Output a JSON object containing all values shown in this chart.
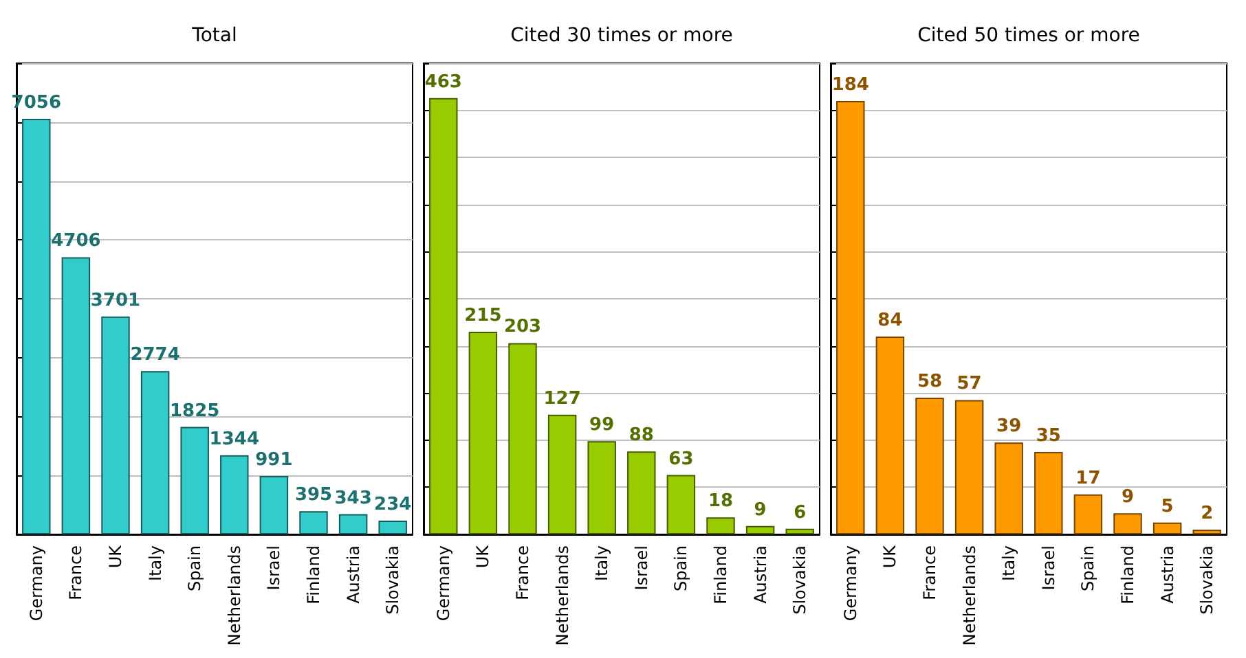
{
  "chart_data": [
    {
      "type": "bar",
      "title": "Total",
      "categories": [
        "Germany",
        "France",
        "UK",
        "Italy",
        "Spain",
        "Netherlands",
        "Israel",
        "Finland",
        "Austria",
        "Slovakia"
      ],
      "values": [
        7056,
        4706,
        3701,
        2774,
        1825,
        1344,
        991,
        395,
        343,
        234
      ],
      "color": "#33cccc",
      "data_labels": true,
      "ylim": [
        0,
        8000
      ],
      "yticks": [
        {
          "value": 0,
          "label": null
        },
        {
          "value": 1000,
          "label": null
        },
        {
          "value": 2000,
          "label": null
        },
        {
          "value": 3000,
          "label": null
        },
        {
          "value": 4000,
          "label": null
        },
        {
          "value": 5000,
          "label": null
        },
        {
          "value": 6000,
          "label": null
        },
        {
          "value": 7000,
          "label": null
        },
        {
          "value": 8000,
          "label": null
        }
      ],
      "grid": "y",
      "tick_labels": "x"
    },
    {
      "type": "bar",
      "title": "Cited 30 times or more",
      "categories": [
        "Germany",
        "UK",
        "France",
        "Netherlands",
        "Italy",
        "Israel",
        "Spain",
        "Finland",
        "Austria",
        "Slovakia"
      ],
      "values": [
        463,
        215,
        203,
        127,
        99,
        88,
        63,
        18,
        9,
        6
      ],
      "color": "#99cc00",
      "data_labels": true,
      "ylim": [
        0,
        500
      ],
      "yticks": [
        {
          "value": 0,
          "label": null
        },
        {
          "value": 50,
          "label": null
        },
        {
          "value": 100,
          "label": null
        },
        {
          "value": 150,
          "label": null
        },
        {
          "value": 200,
          "label": null
        },
        {
          "value": 250,
          "label": null
        },
        {
          "value": 300,
          "label": null
        },
        {
          "value": 350,
          "label": null
        },
        {
          "value": 400,
          "label": null
        },
        {
          "value": 450,
          "label": null
        },
        {
          "value": 500,
          "label": null
        }
      ],
      "grid": "y",
      "tick_labels": "x"
    },
    {
      "type": "bar",
      "title": "Cited 50 times or more",
      "categories": [
        "Germany",
        "UK",
        "France",
        "Netherlands",
        "Italy",
        "Israel",
        "Spain",
        "Finland",
        "Austria",
        "Slovakia"
      ],
      "values": [
        184,
        84,
        58,
        57,
        39,
        35,
        17,
        9,
        5,
        2
      ],
      "color": "#ff9900",
      "data_labels": true,
      "ylim": [
        0,
        200
      ],
      "yticks": [
        {
          "value": 0,
          "label": null
        },
        {
          "value": 20,
          "label": null
        },
        {
          "value": 40,
          "label": null
        },
        {
          "value": 60,
          "label": null
        },
        {
          "value": 80,
          "label": null
        },
        {
          "value": 100,
          "label": null
        },
        {
          "value": 120,
          "label": null
        },
        {
          "value": 140,
          "label": null
        },
        {
          "value": 160,
          "label": null
        },
        {
          "value": 180,
          "label": null
        },
        {
          "value": 200,
          "label": null
        }
      ],
      "grid": "y",
      "tick_labels": "x"
    }
  ]
}
